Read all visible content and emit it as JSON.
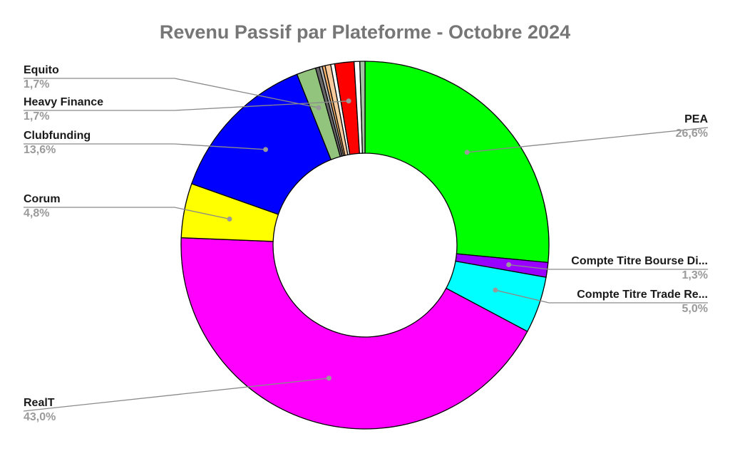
{
  "chart_data": {
    "type": "pie",
    "title": "Revenu Passif par Plateforme - Octobre 2024",
    "labeled_slices": [
      {
        "name": "PEA",
        "value_label": "26,6%",
        "value": 26.6,
        "color": "#00ff00"
      },
      {
        "name": "Compte Titre Bourse Di...",
        "value_label": "1,3%",
        "value": 1.3,
        "color": "#9900ff"
      },
      {
        "name": "Compte Titre Trade Re...",
        "value_label": "5,0%",
        "value": 5.0,
        "color": "#00ffff"
      },
      {
        "name": "RealT",
        "value_label": "43,0%",
        "value": 43.0,
        "color": "#ff00ff"
      },
      {
        "name": "Corum",
        "value_label": "4,8%",
        "value": 4.8,
        "color": "#ffff00"
      },
      {
        "name": "Clubfunding",
        "value_label": "13,6%",
        "value": 13.6,
        "color": "#0000ff"
      },
      {
        "name": "Heavy Finance",
        "value_label": "1,7%",
        "value": 1.7,
        "color": "#ff0000"
      },
      {
        "name": "Equito",
        "value_label": "1,7%",
        "value": 1.7,
        "color": "#93c47d"
      }
    ],
    "slices_clockwise_from_top": [
      {
        "value": 26.6,
        "color": "#00ff00",
        "label_index": 0
      },
      {
        "value": 1.3,
        "color": "#9900ff",
        "label_index": 1
      },
      {
        "value": 5.0,
        "color": "#00ffff",
        "label_index": 2
      },
      {
        "value": 43.0,
        "color": "#ff00ff",
        "label_index": 3
      },
      {
        "value": 4.8,
        "color": "#ffff00",
        "label_index": 4
      },
      {
        "value": 13.6,
        "color": "#0000ff",
        "label_index": 5
      },
      {
        "value": 1.7,
        "color": "#93c47d",
        "label_index": 7
      },
      {
        "value": 0.35,
        "color": "#666666",
        "label_index": null
      },
      {
        "value": 0.25,
        "color": "#b7b7b7",
        "label_index": null
      },
      {
        "value": 0.25,
        "color": "#f6b26b",
        "label_index": null
      },
      {
        "value": 0.5,
        "color": "#f9cb9c",
        "label_index": null
      },
      {
        "value": 0.35,
        "color": "#ffffff",
        "label_index": null
      },
      {
        "value": 1.7,
        "color": "#ff0000",
        "label_index": 6
      },
      {
        "value": 0.5,
        "color": "#ffffff",
        "label_index": null
      },
      {
        "value": 0.45,
        "color": "#a2c4a2",
        "label_index": null
      }
    ],
    "legend": "none"
  }
}
